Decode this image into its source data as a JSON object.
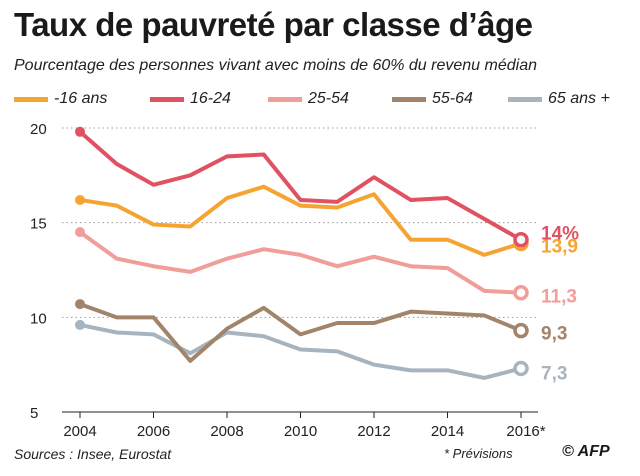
{
  "chart_data": {
    "type": "line",
    "title": "Taux de pauvreté par classe d’âge",
    "subtitle": "Pourcentage des personnes vivant avec moins de 60% du revenu médian",
    "xlabel": "",
    "ylabel": "",
    "x": [
      2004,
      2005,
      2006,
      2007,
      2008,
      2009,
      2010,
      2011,
      2012,
      2013,
      2014,
      2015,
      2016
    ],
    "x_ticks": [
      2004,
      2006,
      2008,
      2010,
      2012,
      2014,
      2016
    ],
    "x_tick_labels": [
      "2004",
      "2006",
      "2008",
      "2010",
      "2012",
      "2014",
      "2016*"
    ],
    "ylim": [
      5,
      20
    ],
    "y_ticks": [
      5,
      10,
      15,
      20
    ],
    "y_tick_labels": [
      "5",
      "10",
      "15",
      "20"
    ],
    "grid": "horizontal dotted",
    "legend_position": "top",
    "series": [
      {
        "name": "-16 ans",
        "color": "#f5a431",
        "values": [
          16.2,
          15.9,
          14.9,
          14.8,
          16.3,
          16.9,
          15.9,
          15.8,
          16.5,
          14.1,
          14.1,
          13.3,
          13.9
        ],
        "end_label": "13,9"
      },
      {
        "name": "16-24",
        "color": "#e05262",
        "values": [
          19.8,
          18.1,
          17.0,
          17.5,
          18.5,
          18.6,
          16.2,
          16.1,
          17.4,
          16.2,
          16.3,
          15.2,
          14.1
        ],
        "end_label": "14%"
      },
      {
        "name": "25-54",
        "color": "#f19d99",
        "values": [
          14.5,
          13.1,
          12.7,
          12.4,
          13.1,
          13.6,
          13.3,
          12.7,
          13.2,
          12.7,
          12.6,
          11.4,
          11.3
        ],
        "end_label": "11,3"
      },
      {
        "name": "55-64",
        "color": "#a1846a",
        "values": [
          10.7,
          10.0,
          10.0,
          7.7,
          9.4,
          10.5,
          9.1,
          9.7,
          9.7,
          10.3,
          10.2,
          10.1,
          9.3
        ],
        "end_label": "9,3"
      },
      {
        "name": "65 ans +",
        "color": "#a6b4bf",
        "values": [
          9.6,
          9.2,
          9.1,
          8.1,
          9.2,
          9.0,
          8.3,
          8.2,
          7.5,
          7.2,
          7.2,
          6.8,
          7.3
        ],
        "end_label": "7,3"
      }
    ]
  },
  "footer": {
    "source": "Sources : Insee, Eurostat",
    "note": "* Prévisions",
    "credit": "© AFP"
  }
}
